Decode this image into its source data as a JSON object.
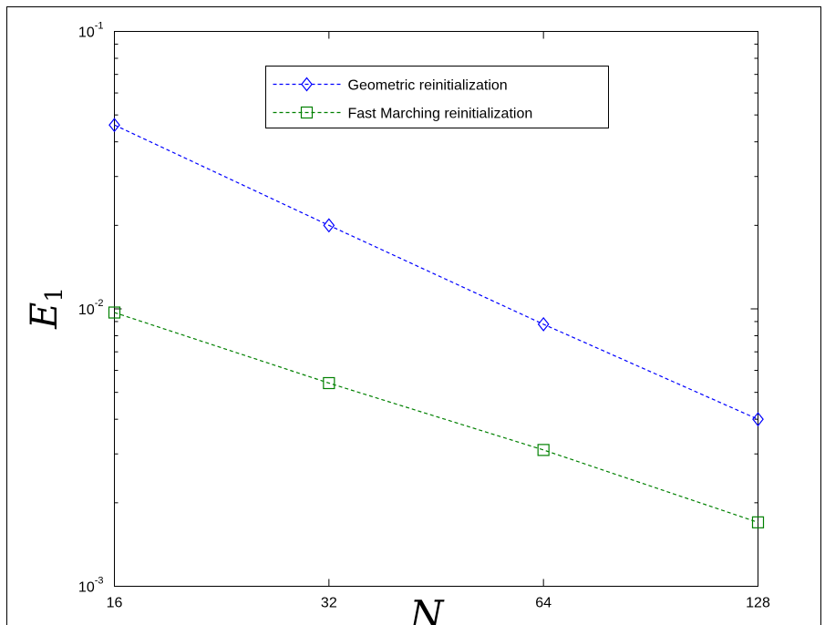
{
  "chart_data": {
    "type": "line",
    "x_scale": "log2",
    "y_scale": "log10",
    "xlim": [
      16,
      128
    ],
    "ylim": [
      0.001,
      0.1
    ],
    "x": [
      16,
      32,
      64,
      128
    ],
    "x_tick_labels": [
      "16",
      "32",
      "64",
      "128"
    ],
    "y_ticks": [
      {
        "value": 0.1,
        "base": "10",
        "exp": "-1"
      },
      {
        "value": 0.01,
        "base": "10",
        "exp": "-2"
      },
      {
        "value": 0.001,
        "base": "10",
        "exp": "-3"
      }
    ],
    "xlabel": "N",
    "ylabel": {
      "main": "E",
      "sub": "1"
    },
    "grid": false,
    "legend_position": "top-center",
    "series": [
      {
        "name": "Geometric reinitialization",
        "values": [
          0.046,
          0.02,
          0.0088,
          0.004
        ],
        "color": "#0000ff",
        "marker": "diamond",
        "line_style": "dashed"
      },
      {
        "name": "Fast Marching reinitialization",
        "values": [
          0.0097,
          0.0054,
          0.0031,
          0.0017
        ],
        "color": "#008000",
        "marker": "square",
        "line_style": "dashed"
      }
    ]
  }
}
